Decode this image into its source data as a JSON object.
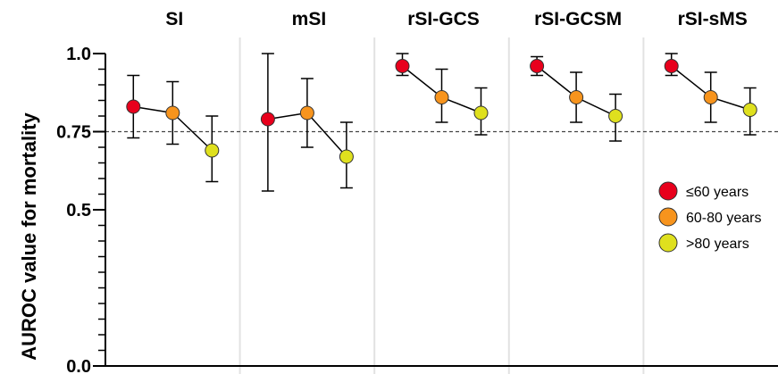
{
  "chart_data": {
    "type": "scatter",
    "ylabel": "AUROC value for mortality",
    "ylim": [
      0,
      1
    ],
    "yticks": [
      {
        "value": 1.0,
        "label": "1.0"
      },
      {
        "value": 0.75,
        "label": "0.75"
      },
      {
        "value": 0.5,
        "label": "0.5"
      },
      {
        "value": 0.0,
        "label": "0.0"
      }
    ],
    "reference_line": 0.75,
    "groups": [
      "≤60 years",
      "60-80 years",
      ">80 years"
    ],
    "colors": [
      "#e8001c",
      "#f7941d",
      "#dfe01e"
    ],
    "panels": [
      {
        "title": "SI",
        "values": [
          0.83,
          0.81,
          0.69
        ],
        "lower": [
          0.73,
          0.71,
          0.59
        ],
        "upper": [
          0.93,
          0.91,
          0.8
        ]
      },
      {
        "title": "mSI",
        "values": [
          0.79,
          0.81,
          0.67
        ],
        "lower": [
          0.56,
          0.7,
          0.57
        ],
        "upper": [
          1.0,
          0.92,
          0.78
        ]
      },
      {
        "title": "rSI-GCS",
        "values": [
          0.96,
          0.86,
          0.81
        ],
        "lower": [
          0.93,
          0.78,
          0.74
        ],
        "upper": [
          1.0,
          0.95,
          0.89
        ]
      },
      {
        "title": "rSI-GCSM",
        "values": [
          0.96,
          0.86,
          0.8
        ],
        "lower": [
          0.93,
          0.78,
          0.72
        ],
        "upper": [
          0.99,
          0.94,
          0.87
        ]
      },
      {
        "title": "rSI-sMS",
        "values": [
          0.96,
          0.86,
          0.82
        ],
        "lower": [
          0.93,
          0.78,
          0.74
        ],
        "upper": [
          1.0,
          0.94,
          0.89
        ]
      }
    ],
    "legend_position": "right"
  }
}
